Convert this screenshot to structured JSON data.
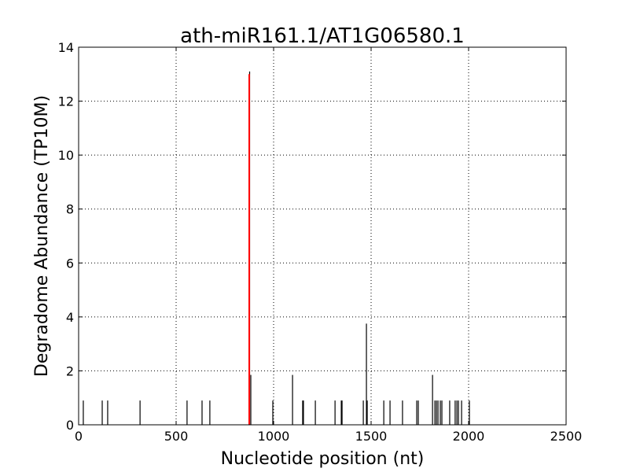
{
  "chart_data": {
    "type": "stem",
    "title": "ath-miR161.1/AT1G06580.1",
    "xlabel": "Nucleotide position (nt)",
    "ylabel": "Degradome Abundance (TP10M)",
    "xlim": [
      0,
      2500
    ],
    "xticks": [
      0,
      500,
      1000,
      1500,
      2000,
      2500
    ],
    "ylim": [
      0,
      14
    ],
    "yticks": [
      0,
      2,
      4,
      6,
      8,
      10,
      12,
      14
    ],
    "grid": true,
    "series": [
      {
        "color": "#000000",
        "x": [
          24,
          121,
          149,
          315,
          556,
          633,
          673,
          877,
          883,
          996,
          1097,
          1149,
          1153,
          1214,
          1315,
          1347,
          1351,
          1460,
          1476,
          1480,
          1565,
          1597,
          1661,
          1734,
          1742,
          1815,
          1827,
          1835,
          1843,
          1855,
          1863,
          1903,
          1931,
          1940,
          1948,
          1964,
          2004
        ],
        "values": [
          0.9,
          0.9,
          0.9,
          0.9,
          0.9,
          0.9,
          0.9,
          13.1,
          1.85,
          0.9,
          1.85,
          0.9,
          0.9,
          0.9,
          0.9,
          0.9,
          0.9,
          0.9,
          3.75,
          0.9,
          0.9,
          0.9,
          0.9,
          0.9,
          0.9,
          1.85,
          0.9,
          0.9,
          0.9,
          0.9,
          0.9,
          0.9,
          0.9,
          0.9,
          0.9,
          0.9,
          0.9
        ]
      },
      {
        "color": "#ff0000",
        "x": [
          875
        ],
        "values": [
          13.0
        ]
      }
    ]
  }
}
